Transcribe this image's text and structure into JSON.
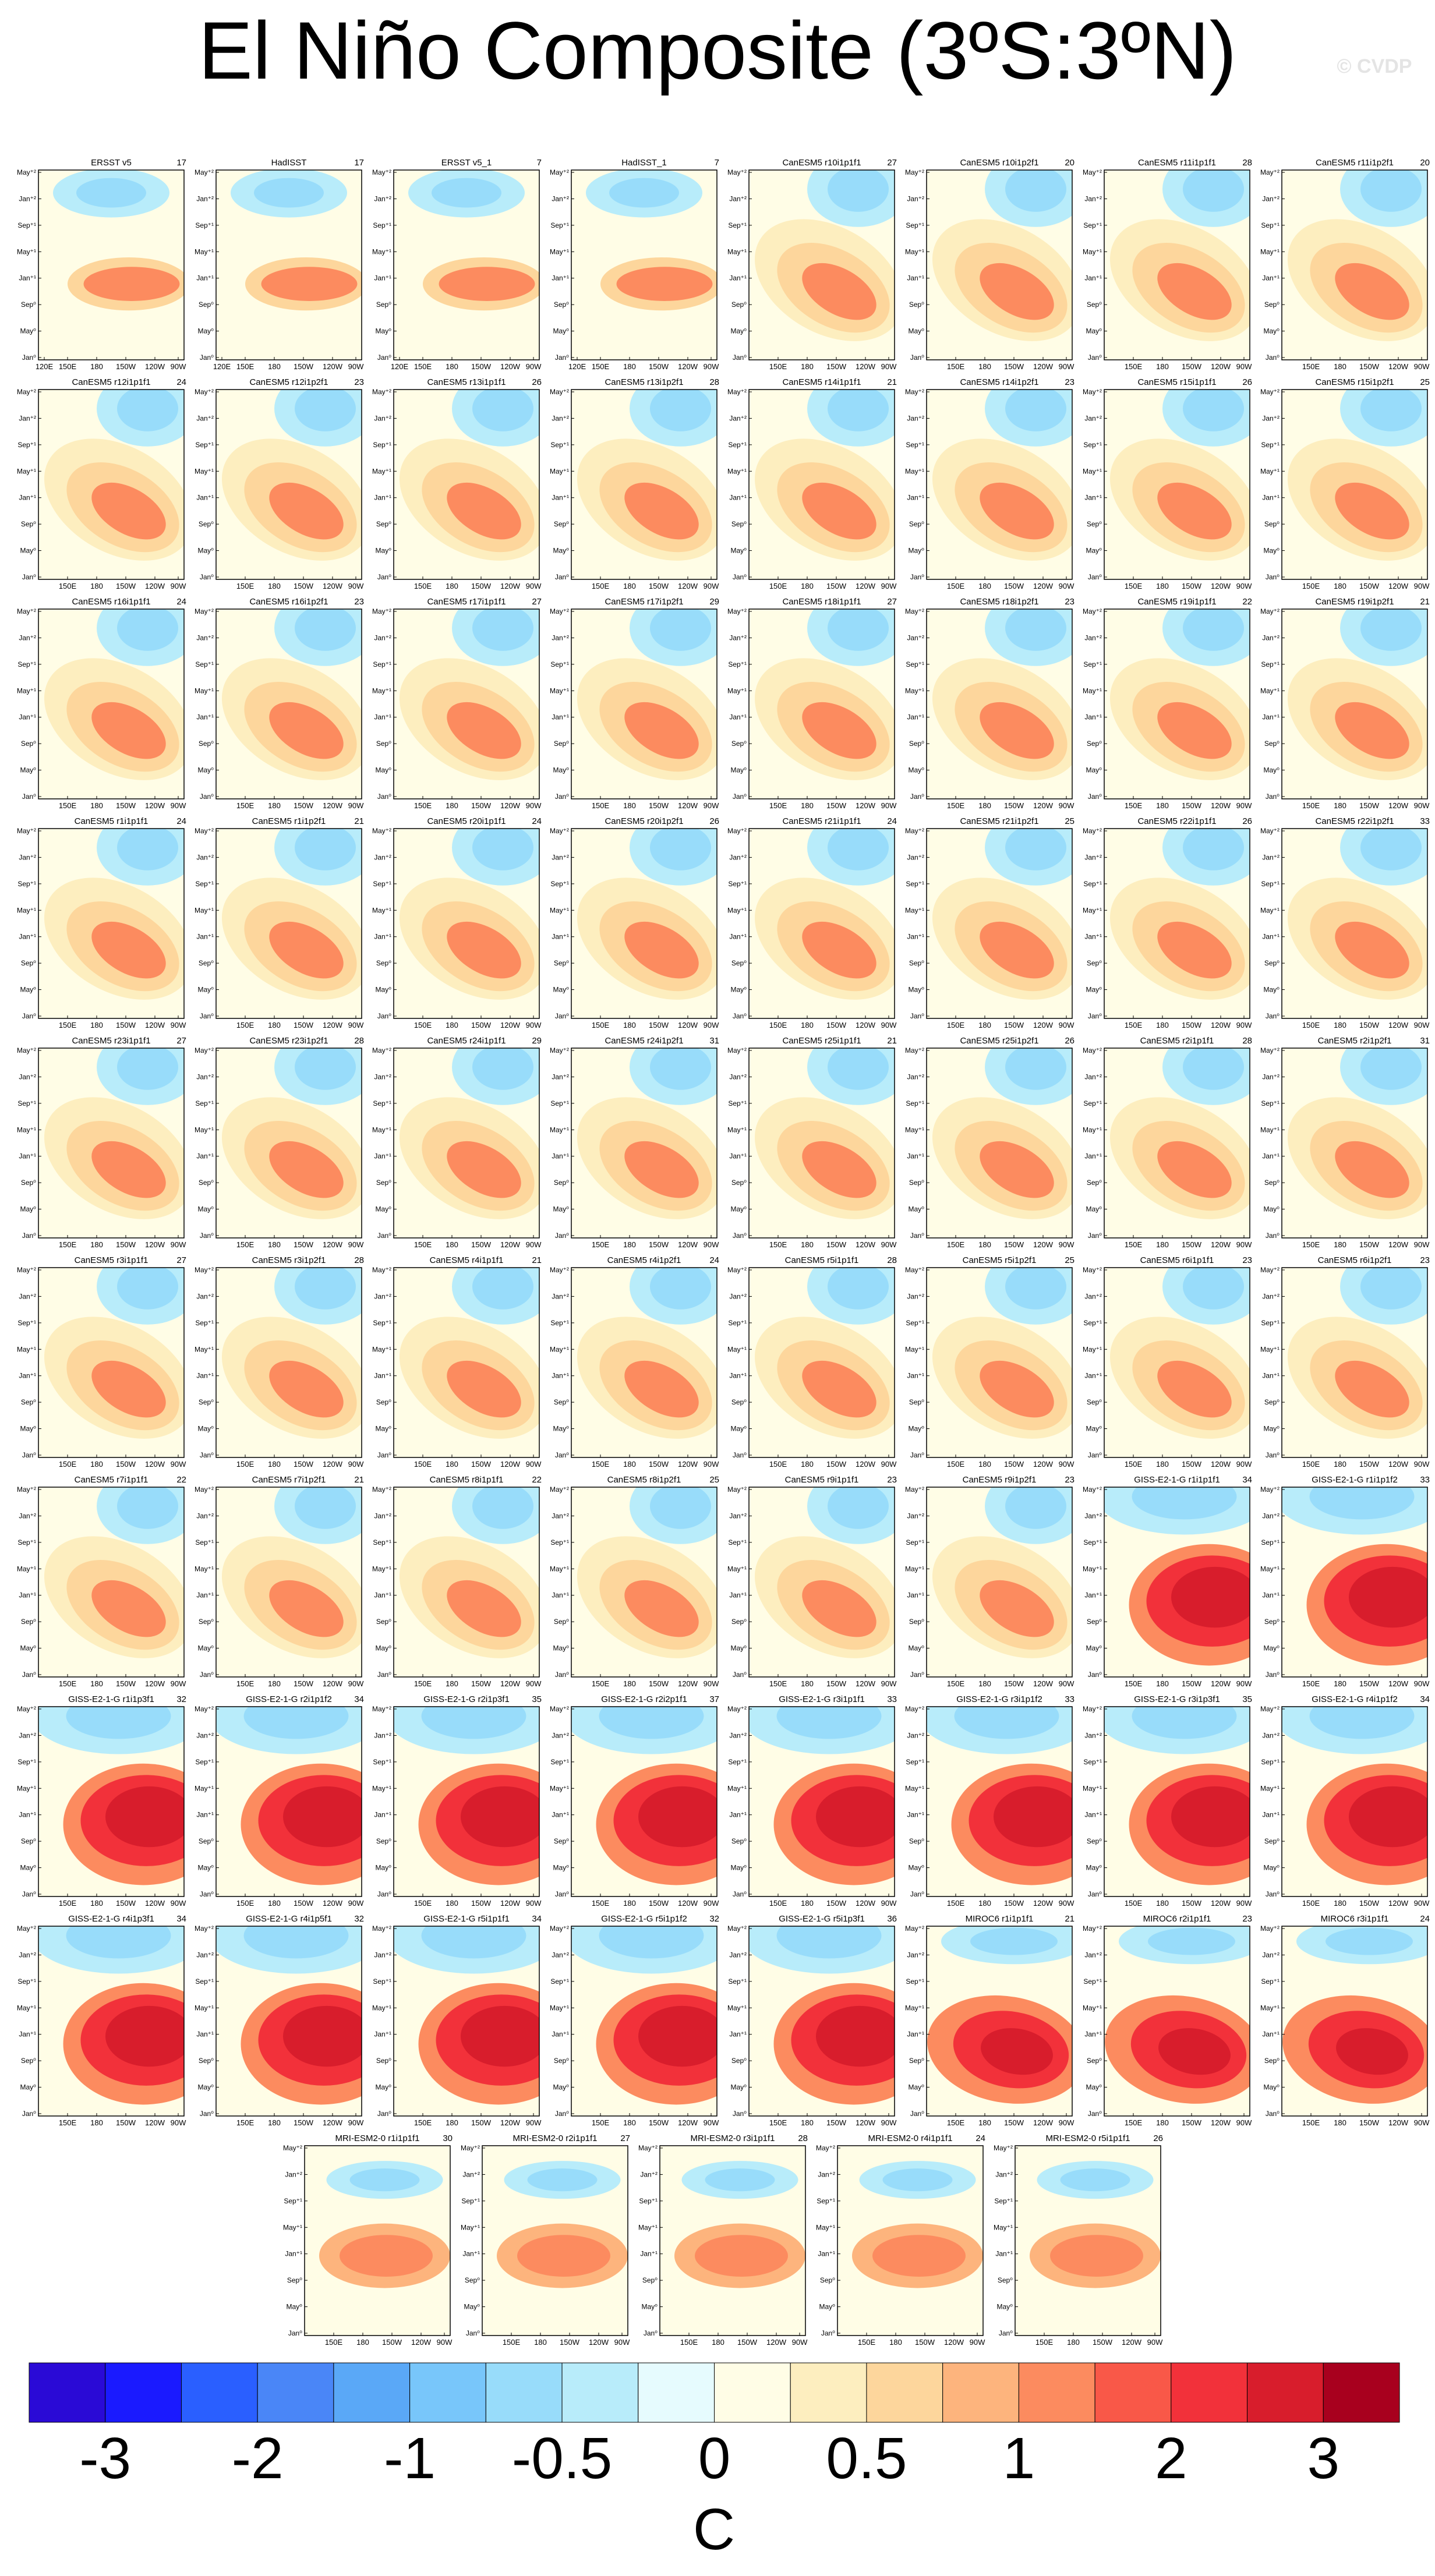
{
  "header": {
    "title": "El Niño Composite (3ºS:3ºN)",
    "watermark": "© CVDP"
  },
  "axes": {
    "ylabels": [
      "May⁺²",
      "Jan⁺²",
      "Sep⁺¹",
      "May⁺¹",
      "Jan⁺¹",
      "Sep⁰",
      "May⁰",
      "Jan⁰"
    ],
    "obs_xlabels": [
      "120E",
      "150E",
      "180",
      "150W",
      "120W",
      "90W"
    ],
    "xlabels": [
      "150E",
      "180",
      "150W",
      "120W",
      "90W"
    ]
  },
  "panels": [
    {
      "title": "ERSST v5",
      "count": 17
    },
    {
      "title": "HadISST",
      "count": 17
    },
    {
      "title": "ERSST v5_1",
      "count": 7
    },
    {
      "title": "HadISST_1",
      "count": 7
    },
    {
      "title": "CanESM5 r10i1p1f1",
      "count": 27
    },
    {
      "title": "CanESM5 r10i1p2f1",
      "count": 20
    },
    {
      "title": "CanESM5 r11i1p1f1",
      "count": 28
    },
    {
      "title": "CanESM5 r11i1p2f1",
      "count": 20
    },
    {
      "title": "CanESM5 r12i1p1f1",
      "count": 24
    },
    {
      "title": "CanESM5 r12i1p2f1",
      "count": 23
    },
    {
      "title": "CanESM5 r13i1p1f1",
      "count": 26
    },
    {
      "title": "CanESM5 r13i1p2f1",
      "count": 28
    },
    {
      "title": "CanESM5 r14i1p1f1",
      "count": 21
    },
    {
      "title": "CanESM5 r14i1p2f1",
      "count": 23
    },
    {
      "title": "CanESM5 r15i1p1f1",
      "count": 26
    },
    {
      "title": "CanESM5 r15i1p2f1",
      "count": 25
    },
    {
      "title": "CanESM5 r16i1p1f1",
      "count": 24
    },
    {
      "title": "CanESM5 r16i1p2f1",
      "count": 23
    },
    {
      "title": "CanESM5 r17i1p1f1",
      "count": 27
    },
    {
      "title": "CanESM5 r17i1p2f1",
      "count": 29
    },
    {
      "title": "CanESM5 r18i1p1f1",
      "count": 27
    },
    {
      "title": "CanESM5 r18i1p2f1",
      "count": 23
    },
    {
      "title": "CanESM5 r19i1p1f1",
      "count": 22
    },
    {
      "title": "CanESM5 r19i1p2f1",
      "count": 21
    },
    {
      "title": "CanESM5 r1i1p1f1",
      "count": 24
    },
    {
      "title": "CanESM5 r1i1p2f1",
      "count": 21
    },
    {
      "title": "CanESM5 r20i1p1f1",
      "count": 24
    },
    {
      "title": "CanESM5 r20i1p2f1",
      "count": 26
    },
    {
      "title": "CanESM5 r21i1p1f1",
      "count": 24
    },
    {
      "title": "CanESM5 r21i1p2f1",
      "count": 25
    },
    {
      "title": "CanESM5 r22i1p1f1",
      "count": 26
    },
    {
      "title": "CanESM5 r22i1p2f1",
      "count": 33
    },
    {
      "title": "CanESM5 r23i1p1f1",
      "count": 27
    },
    {
      "title": "CanESM5 r23i1p2f1",
      "count": 28
    },
    {
      "title": "CanESM5 r24i1p1f1",
      "count": 29
    },
    {
      "title": "CanESM5 r24i1p2f1",
      "count": 31
    },
    {
      "title": "CanESM5 r25i1p1f1",
      "count": 21
    },
    {
      "title": "CanESM5 r25i1p2f1",
      "count": 26
    },
    {
      "title": "CanESM5 r2i1p1f1",
      "count": 28
    },
    {
      "title": "CanESM5 r2i1p2f1",
      "count": 31
    },
    {
      "title": "CanESM5 r3i1p1f1",
      "count": 27
    },
    {
      "title": "CanESM5 r3i1p2f1",
      "count": 28
    },
    {
      "title": "CanESM5 r4i1p1f1",
      "count": 21
    },
    {
      "title": "CanESM5 r4i1p2f1",
      "count": 24
    },
    {
      "title": "CanESM5 r5i1p1f1",
      "count": 28
    },
    {
      "title": "CanESM5 r5i1p2f1",
      "count": 25
    },
    {
      "title": "CanESM5 r6i1p1f1",
      "count": 23
    },
    {
      "title": "CanESM5 r6i1p2f1",
      "count": 23
    },
    {
      "title": "CanESM5 r7i1p1f1",
      "count": 22
    },
    {
      "title": "CanESM5 r7i1p2f1",
      "count": 21
    },
    {
      "title": "CanESM5 r8i1p1f1",
      "count": 22
    },
    {
      "title": "CanESM5 r8i1p2f1",
      "count": 25
    },
    {
      "title": "CanESM5 r9i1p1f1",
      "count": 23
    },
    {
      "title": "CanESM5 r9i1p2f1",
      "count": 23
    },
    {
      "title": "GISS-E2-1-G r1i1p1f1",
      "count": 34
    },
    {
      "title": "GISS-E2-1-G r1i1p1f2",
      "count": 33
    },
    {
      "title": "GISS-E2-1-G r1i1p3f1",
      "count": 32
    },
    {
      "title": "GISS-E2-1-G r2i1p1f2",
      "count": 34
    },
    {
      "title": "GISS-E2-1-G r2i1p3f1",
      "count": 35
    },
    {
      "title": "GISS-E2-1-G r2i2p1f1",
      "count": 37
    },
    {
      "title": "GISS-E2-1-G r3i1p1f1",
      "count": 33
    },
    {
      "title": "GISS-E2-1-G r3i1p1f2",
      "count": 33
    },
    {
      "title": "GISS-E2-1-G r3i1p3f1",
      "count": 35
    },
    {
      "title": "GISS-E2-1-G r4i1p1f2",
      "count": 34
    },
    {
      "title": "GISS-E2-1-G r4i1p3f1",
      "count": 34
    },
    {
      "title": "GISS-E2-1-G r4i1p5f1",
      "count": 32
    },
    {
      "title": "GISS-E2-1-G r5i1p1f1",
      "count": 34
    },
    {
      "title": "GISS-E2-1-G r5i1p1f2",
      "count": 32
    },
    {
      "title": "GISS-E2-1-G r5i1p3f1",
      "count": 36
    },
    {
      "title": "MIROC6 r1i1p1f1",
      "count": 21
    },
    {
      "title": "MIROC6 r2i1p1f1",
      "count": 23
    },
    {
      "title": "MIROC6 r3i1p1f1",
      "count": 24
    },
    {
      "title": "MRI-ESM2-0 r1i1p1f1",
      "count": 30
    },
    {
      "title": "MRI-ESM2-0 r2i1p1f1",
      "count": 27
    },
    {
      "title": "MRI-ESM2-0 r3i1p1f1",
      "count": 28
    },
    {
      "title": "MRI-ESM2-0 r4i1p1f1",
      "count": 24
    },
    {
      "title": "MRI-ESM2-0 r5i1p1f1",
      "count": 26
    }
  ],
  "colorbar": {
    "colors": [
      "#2a0ad6",
      "#1a1aff",
      "#2a5fff",
      "#4a86f7",
      "#5aa8f7",
      "#78c6fa",
      "#98dcfa",
      "#b8ecfa",
      "#e6fbfe",
      "#fffde6",
      "#fdeebf",
      "#fdd69c",
      "#fdb47d",
      "#fc8b5f",
      "#f95848",
      "#f2313a",
      "#d81d2c",
      "#a8001e"
    ],
    "labels": [
      -3,
      -2,
      -1,
      -0.5,
      0,
      0.5,
      1,
      2,
      3
    ],
    "unit": "C"
  }
}
